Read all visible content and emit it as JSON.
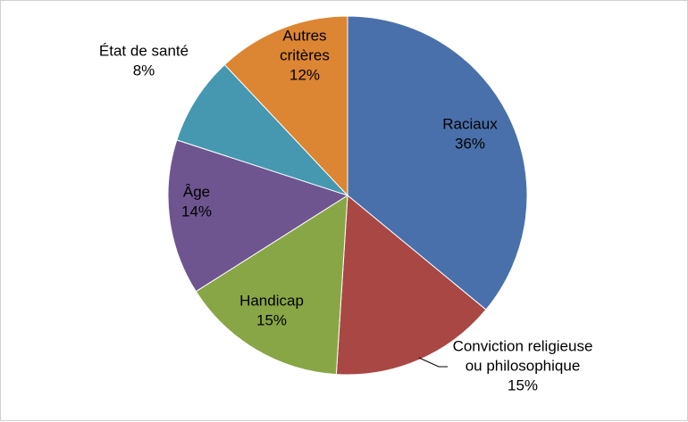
{
  "chart_data": {
    "type": "pie",
    "title": "",
    "legend": "none",
    "slices": [
      {
        "label": [
          "Raciaux"
        ],
        "value_label": "36%",
        "value": 36,
        "color": "#4a70ab"
      },
      {
        "label": [
          "Conviction religieuse",
          "ou philosophique"
        ],
        "value_label": "15%",
        "value": 15,
        "color": "#a94744"
      },
      {
        "label": [
          "Handicap"
        ],
        "value_label": "15%",
        "value": 15,
        "color": "#89a646"
      },
      {
        "label": [
          "Âge"
        ],
        "value_label": "14%",
        "value": 14,
        "color": "#6e5590"
      },
      {
        "label": [
          "État de santé"
        ],
        "value_label": "8%",
        "value": 8,
        "color": "#4598b0"
      },
      {
        "label": [
          "Autres",
          "critères"
        ],
        "value_label": "12%",
        "value": 12,
        "color": "#dc8532"
      }
    ]
  }
}
